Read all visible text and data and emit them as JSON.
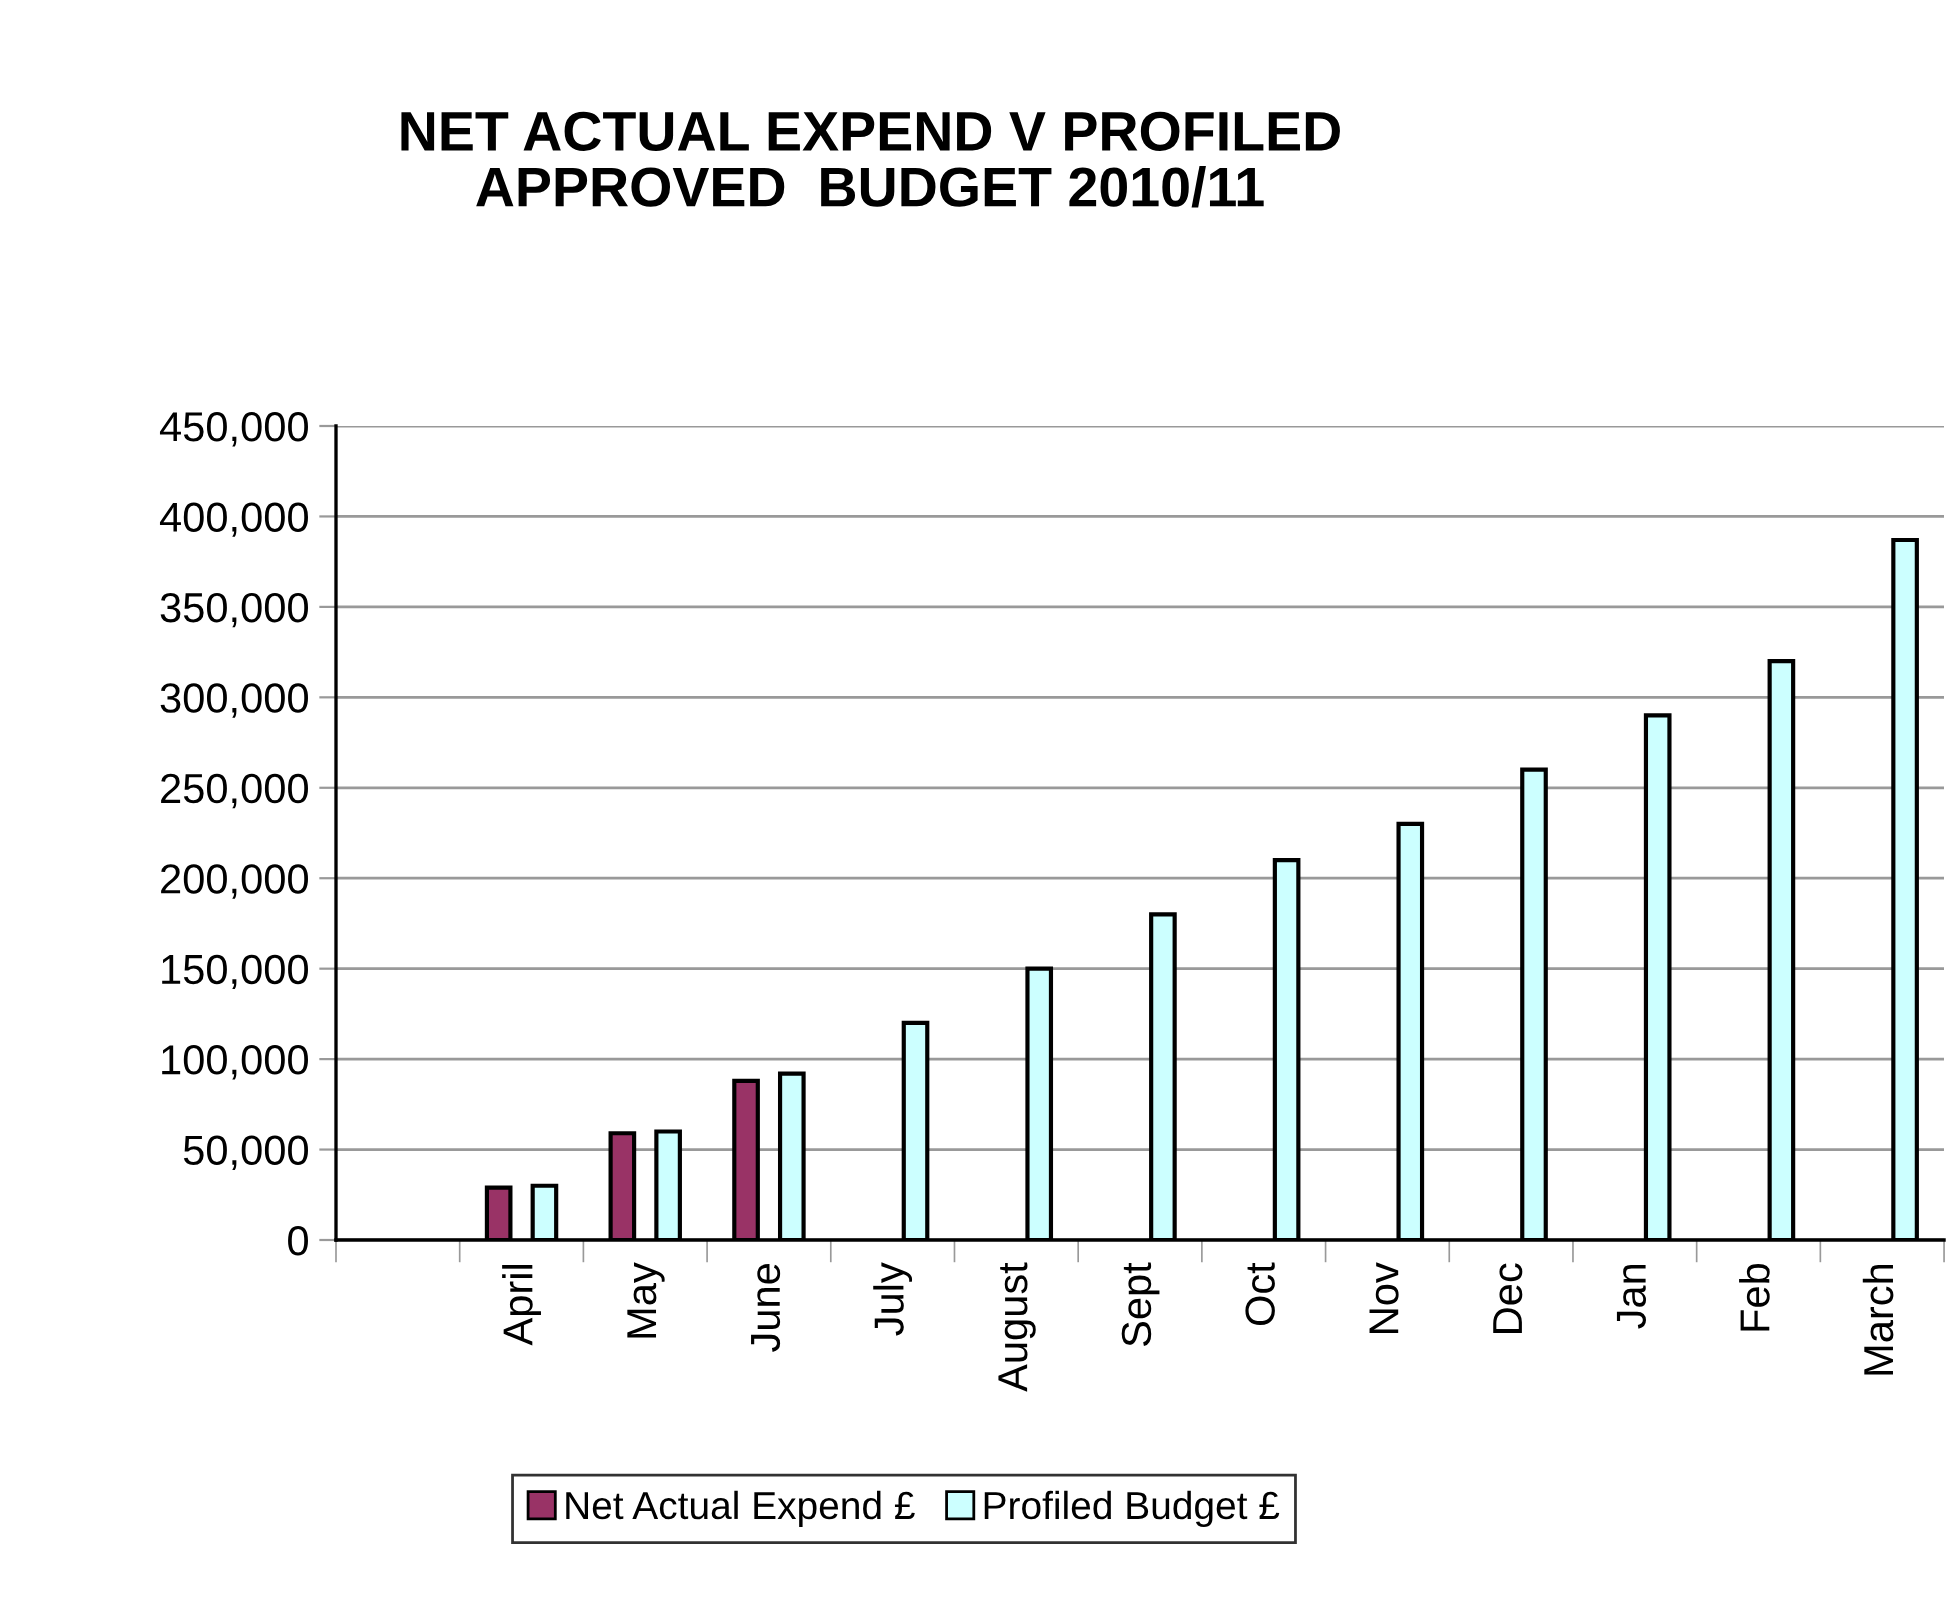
{
  "chart_data": {
    "type": "bar",
    "title": "NET ACTUAL EXPEND V PROFILED\nAPPROVED  BUDGET 2010/11",
    "categories": [
      null,
      "April",
      "May",
      "June",
      "July",
      "August",
      "Sept",
      "Oct",
      "Nov",
      "Dec",
      "Jan",
      "Feb",
      "March"
    ],
    "series": [
      {
        "name": "Net Actual Expend £",
        "color": "#993366",
        "values": [
          null,
          29000,
          59000,
          88000,
          null,
          null,
          null,
          null,
          null,
          null,
          null,
          null,
          null
        ]
      },
      {
        "name": "Profiled Budget £",
        "color": "#ccffff",
        "values": [
          null,
          30000,
          60000,
          92000,
          120000,
          150000,
          180000,
          210000,
          230000,
          260000,
          290000,
          320000,
          387000
        ]
      }
    ],
    "ylim": [
      0,
      450000
    ],
    "yticks": [
      0,
      {
        "value": 50000,
        "label": "50,000"
      },
      {
        "value": 100000,
        "label": "100,000"
      },
      {
        "value": 150000,
        "label": "150,000"
      },
      {
        "value": 200000,
        "label": "200,000"
      },
      {
        "value": 250000,
        "label": "250,000"
      },
      {
        "value": 300000,
        "label": "300,000"
      },
      {
        "value": 350000,
        "label": "350,000"
      },
      {
        "value": 400000,
        "label": "400,000"
      },
      {
        "value": 450000,
        "label": "450,000"
      }
    ],
    "grid": "y",
    "legend": "bottom"
  }
}
